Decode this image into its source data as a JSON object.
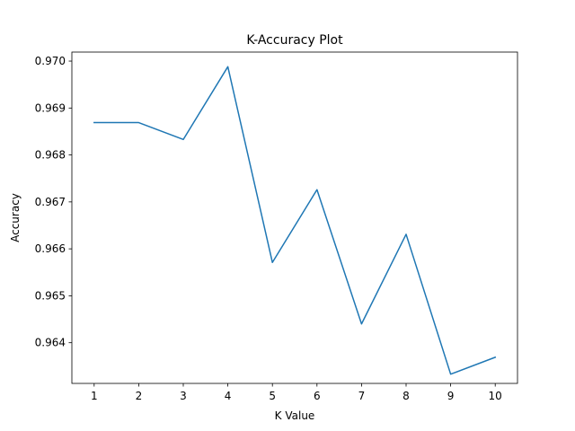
{
  "chart_data": {
    "type": "line",
    "title": "K-Accuracy Plot",
    "xlabel": "K Value",
    "ylabel": "Accuracy",
    "x": [
      1,
      2,
      3,
      4,
      5,
      6,
      7,
      8,
      9,
      10
    ],
    "series": [
      {
        "values": [
          0.96869,
          0.96869,
          0.96833,
          0.96988,
          0.96571,
          0.96726,
          0.9644,
          0.96631,
          0.96333,
          0.96369
        ],
        "color": "#1f77b4"
      }
    ],
    "xticks": [
      "1",
      "2",
      "3",
      "4",
      "5",
      "6",
      "7",
      "8",
      "9",
      "10"
    ],
    "yticks": [
      "0.964",
      "0.965",
      "0.966",
      "0.967",
      "0.968",
      "0.969",
      "0.970"
    ],
    "xlim": [
      0.5,
      10.5
    ],
    "ylim": [
      0.963133,
      0.970192
    ],
    "grid": false,
    "legend": "none"
  }
}
